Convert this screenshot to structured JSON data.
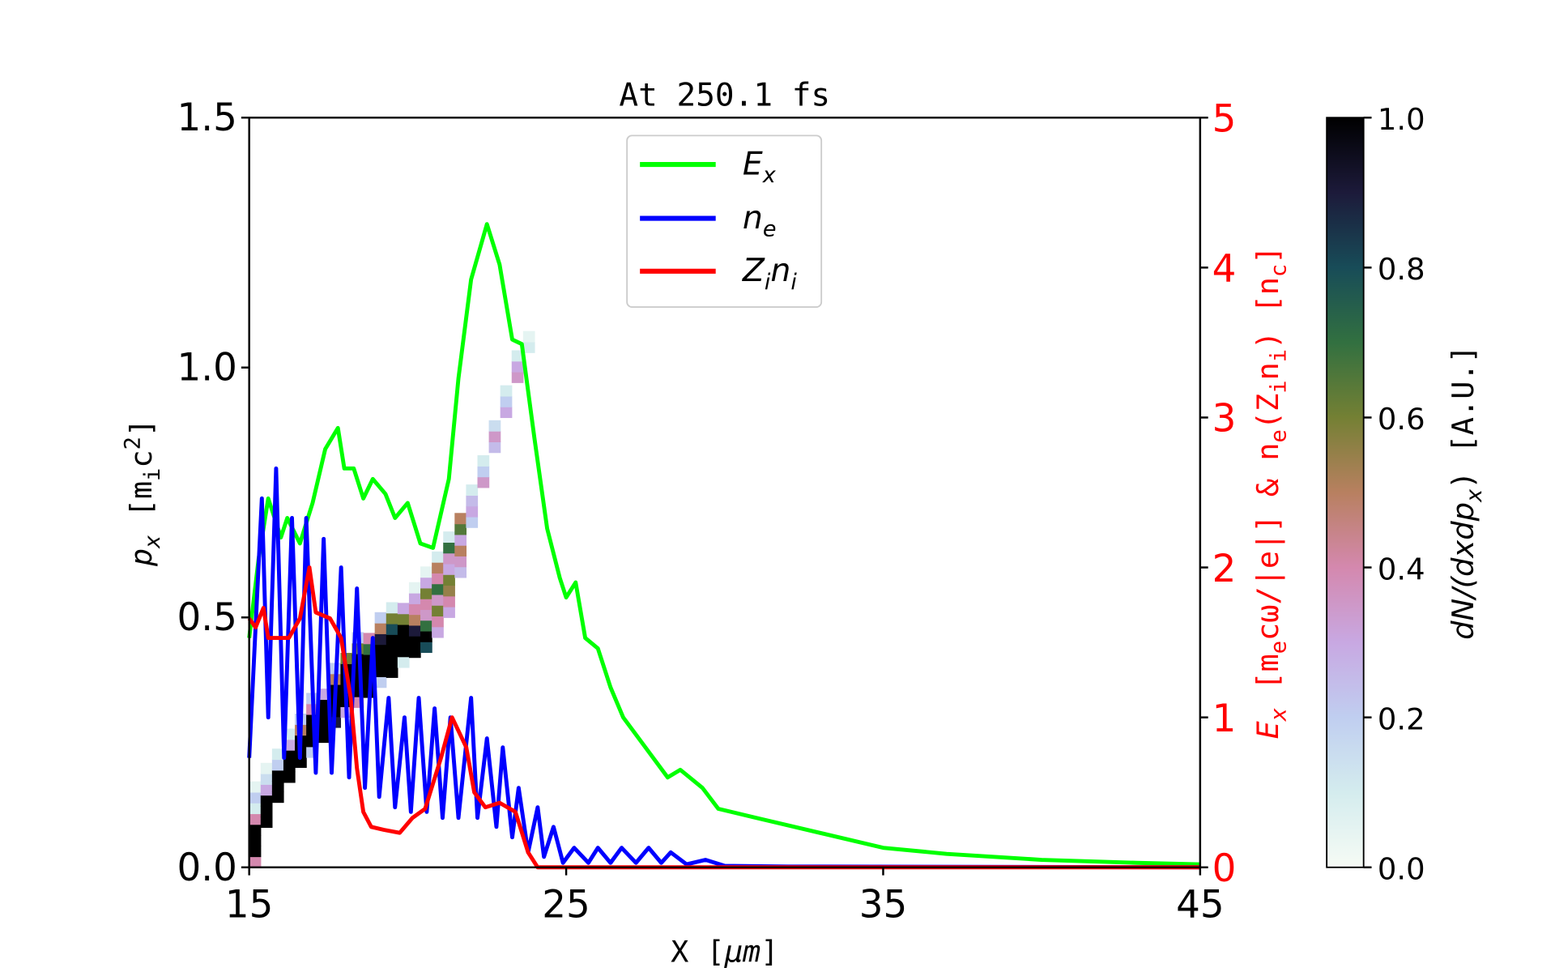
{
  "chart_data": {
    "type": "line",
    "title": "At 250.1 fs",
    "xlabel": {
      "main": "X [",
      "sym": "μm",
      "close": "]"
    },
    "ylabel_left": {
      "p": "p",
      "p_sub": "x",
      "open": " [m",
      "m_sub": "i",
      "c": "c",
      "sup": "2",
      "close": "]"
    },
    "ylabel_right": {
      "e": "E",
      "e_sub": "x",
      "u1": " [m",
      "u1_sub": "e",
      "u1_rest": "cω/|e|] & n",
      "n_sub": "e",
      "mid": "(Z",
      "z_sub": "i",
      "n2": "n",
      "n2_sub": "i",
      "mid2": ") [n",
      "nc_sub": "c",
      "close": "]"
    },
    "colorbar_label": {
      "a": "dN/(dxdp",
      "a_sub": "x",
      "b": ")  [A.U.]"
    },
    "xlim": [
      15,
      45
    ],
    "ylim_left": [
      0,
      1.5
    ],
    "ylim_right": [
      0,
      5
    ],
    "clim": [
      0,
      1
    ],
    "x_ticks": [
      "15",
      "25",
      "35",
      "45"
    ],
    "y_ticks_left": [
      "0.0",
      "0.5",
      "1.0",
      "1.5"
    ],
    "y_ticks_right": [
      "0",
      "1",
      "2",
      "3",
      "4",
      "5"
    ],
    "colorbar_ticks": [
      "0.0",
      "0.2",
      "0.4",
      "0.6",
      "0.8",
      "1.0"
    ],
    "colormap": "cubehelix_r",
    "grid": false,
    "legend_position": "top-center",
    "series": [
      {
        "name": "E",
        "name_sub": "x",
        "color": "#00ff00",
        "axis": "right",
        "x": [
          15.0,
          15.3,
          15.6,
          16.0,
          16.2,
          16.6,
          17.0,
          17.4,
          17.8,
          18.0,
          18.3,
          18.6,
          18.9,
          19.3,
          19.6,
          20.0,
          20.4,
          20.8,
          21.3,
          21.6,
          22.0,
          22.5,
          22.9,
          23.3,
          23.6,
          24.0,
          24.4,
          24.8,
          25.0,
          25.3,
          25.6,
          26.0,
          26.4,
          26.8,
          27.5,
          28.2,
          28.6,
          29.3,
          29.8,
          31,
          33,
          35,
          37,
          40,
          43,
          45
        ],
        "y": [
          1.53,
          2.06,
          2.46,
          2.2,
          2.33,
          2.16,
          2.43,
          2.79,
          2.93,
          2.66,
          2.66,
          2.46,
          2.59,
          2.49,
          2.33,
          2.43,
          2.16,
          2.13,
          2.59,
          3.26,
          3.92,
          4.29,
          4.02,
          3.52,
          3.49,
          2.86,
          2.26,
          1.93,
          1.8,
          1.9,
          1.53,
          1.46,
          1.2,
          1.0,
          0.8,
          0.6,
          0.65,
          0.53,
          0.39,
          0.33,
          0.23,
          0.13,
          0.09,
          0.05,
          0.03,
          0.02
        ]
      },
      {
        "name": "n",
        "name_sub": "e",
        "color": "#0000ff",
        "axis": "right",
        "x": [
          15.0,
          15.4,
          15.6,
          15.85,
          16.1,
          16.35,
          16.6,
          16.8,
          17.1,
          17.35,
          17.6,
          17.9,
          18.15,
          18.4,
          18.65,
          18.9,
          19.1,
          19.4,
          19.6,
          19.9,
          20.1,
          20.35,
          20.6,
          20.85,
          21.1,
          21.35,
          21.6,
          22.0,
          22.2,
          22.5,
          22.8,
          23.0,
          23.3,
          23.5,
          23.8,
          24.1,
          24.3,
          24.6,
          24.9,
          25.25,
          25.7,
          26.0,
          26.4,
          26.75,
          27.2,
          27.6,
          28.0,
          28.3,
          28.8,
          29.4,
          30.0,
          32.0,
          45.0
        ],
        "y": [
          0.73,
          2.46,
          1.0,
          2.66,
          0.73,
          2.33,
          0.73,
          2.33,
          0.63,
          2.19,
          0.63,
          2.0,
          0.6,
          1.86,
          0.53,
          1.53,
          0.47,
          1.13,
          0.4,
          1.0,
          0.37,
          1.13,
          0.37,
          1.06,
          0.33,
          1.0,
          0.33,
          1.13,
          0.33,
          0.86,
          0.27,
          0.8,
          0.2,
          0.53,
          0.1,
          0.4,
          0.07,
          0.27,
          0.03,
          0.13,
          0.03,
          0.13,
          0.03,
          0.13,
          0.03,
          0.13,
          0.03,
          0.1,
          0.02,
          0.05,
          0.01,
          0.005,
          0.0
        ]
      },
      {
        "name": "Z",
        "name_sub": "i",
        "name2": "n",
        "name2_sub": "i",
        "color": "#ff0000",
        "axis": "right",
        "x": [
          15.0,
          15.2,
          15.45,
          15.6,
          15.8,
          16.25,
          16.6,
          16.9,
          17.1,
          17.55,
          17.9,
          18.2,
          18.4,
          18.6,
          18.85,
          19.25,
          19.75,
          20.15,
          20.55,
          21.05,
          21.4,
          21.85,
          22.1,
          22.45,
          22.9,
          23.4,
          23.8,
          24.1,
          24.3,
          45.0
        ],
        "y": [
          1.66,
          1.6,
          1.73,
          1.53,
          1.53,
          1.53,
          1.66,
          2.0,
          1.7,
          1.66,
          1.53,
          1.13,
          0.66,
          0.37,
          0.27,
          0.25,
          0.23,
          0.33,
          0.39,
          0.73,
          1.0,
          0.8,
          0.5,
          0.4,
          0.43,
          0.37,
          0.1,
          0.0,
          0.0,
          0.0
        ]
      }
    ],
    "heatmap": {
      "cell_dx": 0.36,
      "cell_dp": 0.0215,
      "columns": [
        {
          "x": 15.0,
          "p0": 0.0,
          "v": [
            0.4,
            1,
            1,
            1,
            0.4,
            0.1,
            0.2,
            0.05
          ]
        },
        {
          "x": 15.36,
          "p0": 0.08,
          "v": [
            1,
            1,
            1,
            0.3,
            0.15,
            0.05
          ]
        },
        {
          "x": 15.72,
          "p0": 0.13,
          "v": [
            1,
            1,
            1,
            0.2,
            0.1
          ]
        },
        {
          "x": 16.08,
          "p0": 0.17,
          "v": [
            1,
            1,
            1,
            0.3,
            0.1
          ]
        },
        {
          "x": 16.44,
          "p0": 0.2,
          "v": [
            1,
            1,
            1,
            0.5,
            0.2
          ]
        },
        {
          "x": 16.8,
          "p0": 0.22,
          "v": [
            0.2,
            1,
            1,
            1,
            0.4,
            0.2
          ]
        },
        {
          "x": 17.16,
          "p0": 0.25,
          "v": [
            1,
            1,
            1,
            1,
            0.3
          ]
        },
        {
          "x": 17.52,
          "p0": 0.28,
          "v": [
            0.9,
            1,
            1,
            1,
            0.5,
            0.2
          ]
        },
        {
          "x": 17.88,
          "p0": 0.3,
          "v": [
            0.3,
            1,
            1,
            1,
            1,
            0.6
          ]
        },
        {
          "x": 18.24,
          "p0": 0.32,
          "v": [
            0.4,
            1,
            1,
            1,
            1,
            0.6,
            0.2
          ]
        },
        {
          "x": 18.6,
          "p0": 0.34,
          "v": [
            1,
            1,
            1,
            1,
            0.7,
            0.4
          ]
        },
        {
          "x": 18.96,
          "p0": 0.36,
          "v": [
            0.2,
            1,
            1,
            1,
            0.9,
            0.5,
            0.2
          ]
        },
        {
          "x": 19.32,
          "p0": 0.38,
          "v": [
            1,
            1,
            1,
            1,
            0.8,
            0.6,
            0.1
          ]
        },
        {
          "x": 19.68,
          "p0": 0.4,
          "v": [
            0.1,
            1,
            1,
            1,
            0.6,
            0.3
          ]
        },
        {
          "x": 20.04,
          "p0": 0.42,
          "v": [
            1,
            1,
            0.9,
            0.5,
            0.4,
            0.3,
            0.05
          ]
        },
        {
          "x": 20.4,
          "p0": 0.43,
          "v": [
            0.8,
            1,
            0.7,
            0.35,
            0.4,
            0.6,
            0.3,
            0.05
          ]
        },
        {
          "x": 20.76,
          "p0": 0.46,
          "v": [
            0.3,
            0.4,
            0.6,
            0.35,
            0.7,
            0.4,
            0.5,
            0.1
          ]
        },
        {
          "x": 21.12,
          "p0": 0.5,
          "v": [
            0.3,
            0.4,
            0.55,
            0.6,
            0.3,
            0.35,
            0.7,
            0.1
          ]
        },
        {
          "x": 21.48,
          "p0": 0.58,
          "v": [
            0.25,
            0.35,
            0.5,
            0.3,
            0.65,
            0.5
          ]
        },
        {
          "x": 21.84,
          "p0": 0.68,
          "v": [
            0.2,
            0.3,
            0.25,
            0.1
          ]
        },
        {
          "x": 22.2,
          "p0": 0.76,
          "v": [
            0.35,
            0.2,
            0.1
          ]
        },
        {
          "x": 22.56,
          "p0": 0.83,
          "v": [
            0.25,
            0.35,
            0.15
          ]
        },
        {
          "x": 22.92,
          "p0": 0.9,
          "v": [
            0.3,
            0.2,
            0.1
          ]
        },
        {
          "x": 23.28,
          "p0": 0.97,
          "v": [
            0.35,
            0.3,
            0.1
          ]
        },
        {
          "x": 23.64,
          "p0": 1.03,
          "v": [
            0.1,
            0.05
          ]
        }
      ]
    },
    "colors": {
      "right_axis": "#ff0000",
      "axes": "#000000"
    }
  }
}
